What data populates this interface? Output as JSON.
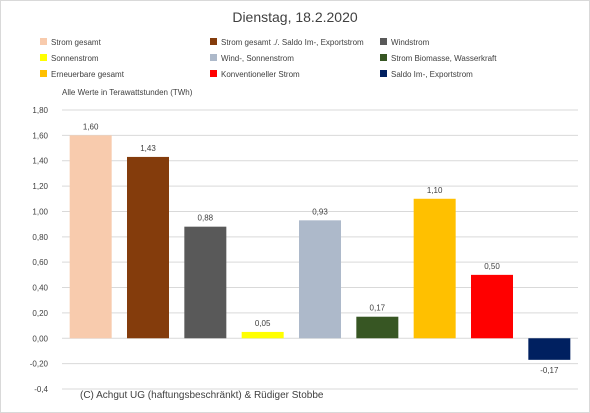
{
  "chart_data": {
    "type": "bar",
    "title": "Dienstag, 18.2.2020",
    "note": "Alle Werte in Terawattstunden (TWh)",
    "copyright": "(C) Achgut UG (haftungsbeschränkt) & Rüdiger Stobbe",
    "ylim": [
      -0.4,
      1.8
    ],
    "ytick_step": 0.2,
    "grid": true,
    "legend_position": "top",
    "categories": [
      "Strom gesamt",
      "Strom gesamt ./. Saldo Im-, Exportstrom",
      "Windstrom",
      "Sonnenstrom",
      "Wind-, Sonnenstrom",
      "Strom Biomasse, Wasserkraft",
      "Erneuerbare gesamt",
      "Konventioneller Strom",
      "Saldo Im-, Exportstrom"
    ],
    "values": [
      1.6,
      1.43,
      0.88,
      0.05,
      0.93,
      0.17,
      1.1,
      0.5,
      -0.17
    ],
    "data_labels": [
      "1,60",
      "1,43",
      "0,88",
      "0,05",
      "0,93",
      "0,17",
      "1,10",
      "0,50",
      "-0,17"
    ],
    "colors": [
      "#f8cbad",
      "#843c0c",
      "#595959",
      "#ffff00",
      "#adb9ca",
      "#375623",
      "#ffc000",
      "#ff0000",
      "#002060"
    ],
    "ytick_labels": [
      "-0,4",
      "-0,20",
      "0,00",
      "0,20",
      "0,40",
      "0,60",
      "0,80",
      "1,00",
      "1,20",
      "1,40",
      "1,60",
      "1,80"
    ]
  }
}
